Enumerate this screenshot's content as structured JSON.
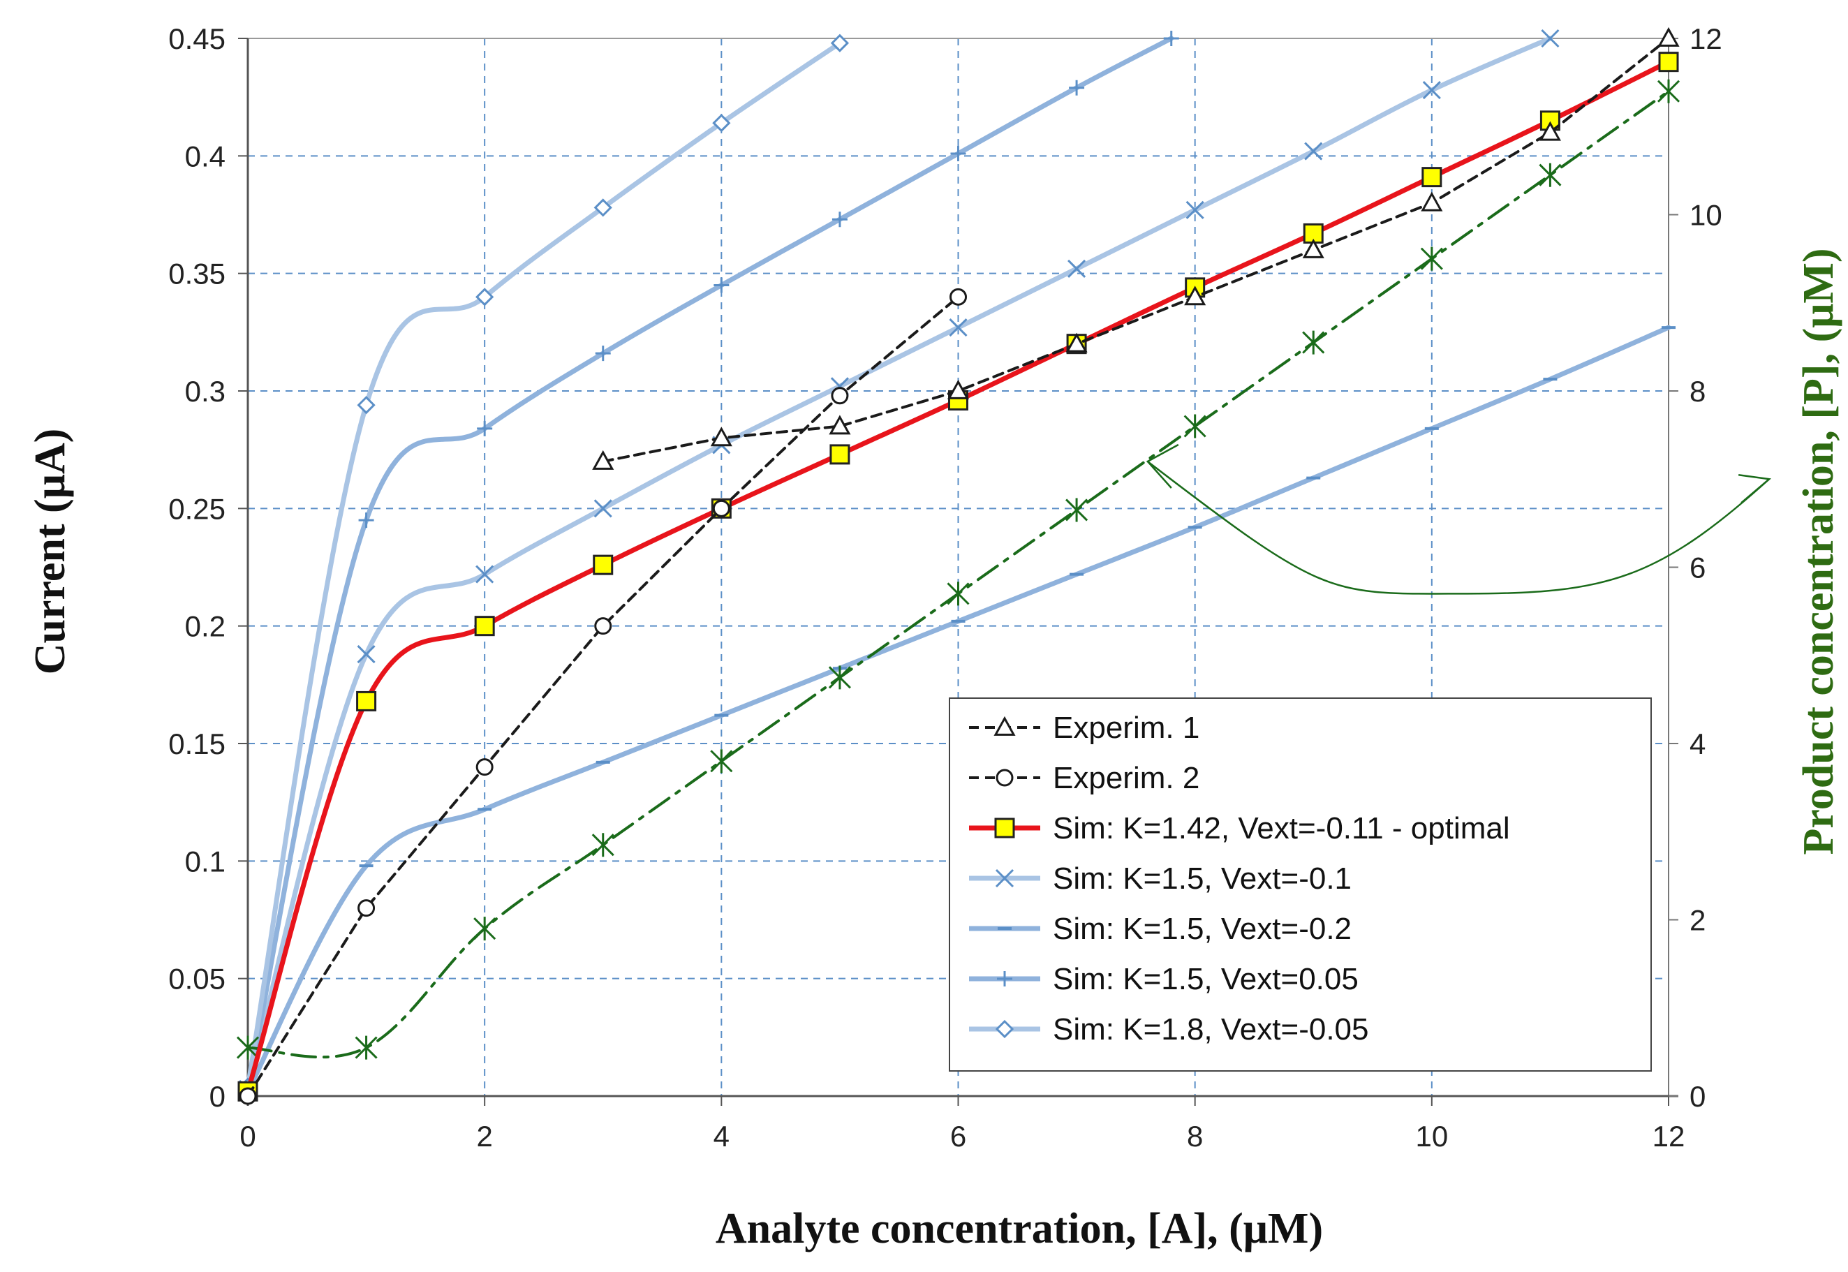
{
  "chart_data": {
    "type": "line",
    "title": "",
    "xlabel": "Analyte concentration, [A], (μM)",
    "ylabel": "Current (μA)",
    "y2label": "Product concentration, [P], (μM)",
    "xlim": [
      0,
      12
    ],
    "ylim": [
      0,
      0.45
    ],
    "y2lim": [
      0,
      12
    ],
    "x_ticks": [
      "0",
      "2",
      "4",
      "6",
      "8",
      "10",
      "12"
    ],
    "y_ticks": [
      "0",
      "0.05",
      "0.1",
      "0.15",
      "0.2",
      "0.25",
      "0.3",
      "0.35",
      "0.4",
      "0.45"
    ],
    "y2_ticks": [
      "0",
      "2",
      "4",
      "6",
      "8",
      "10",
      "12"
    ],
    "grid": true,
    "legend_position": "bottom-right",
    "colors": {
      "experim": "#1a1a1a",
      "optimal_line": "#e8141b",
      "optimal_marker_fill": "#ffff00",
      "sim_light": "#a9c4e4",
      "sim_mid": "#8fb2dc",
      "product": "#1a6b1a",
      "grid": "#5b8fc7",
      "y2_axis_title": "#2e6b12"
    },
    "series": [
      {
        "name": "Experim. 1",
        "axis": "left",
        "marker": "triangle",
        "style": "dashed",
        "x": [
          3,
          4,
          5,
          6,
          7,
          8,
          9,
          10,
          11,
          12
        ],
        "y": [
          0.27,
          0.28,
          0.285,
          0.3,
          0.32,
          0.34,
          0.36,
          0.38,
          0.41,
          0.45
        ]
      },
      {
        "name": "Experim. 2",
        "axis": "left",
        "marker": "circle",
        "style": "dashed",
        "x": [
          0,
          1,
          2,
          3,
          4,
          5,
          6
        ],
        "y": [
          0.0,
          0.08,
          0.14,
          0.2,
          0.25,
          0.298,
          0.34
        ]
      },
      {
        "name": "Sim: K=1.42, Vext=-0.11 - optimal",
        "axis": "left",
        "marker": "square",
        "style": "solid",
        "x": [
          0,
          1,
          2,
          3,
          4,
          5,
          6,
          7,
          8,
          9,
          10,
          11,
          12
        ],
        "y": [
          0.002,
          0.168,
          0.2,
          0.226,
          0.25,
          0.273,
          0.296,
          0.32,
          0.344,
          0.367,
          0.391,
          0.415,
          0.44
        ]
      },
      {
        "name": "Sim: K=1.5, Vext=-0.1",
        "axis": "left",
        "marker": "x",
        "style": "solid",
        "x": [
          0,
          1,
          2,
          3,
          4,
          5,
          6,
          7,
          8,
          9,
          10,
          11
        ],
        "y": [
          0.003,
          0.188,
          0.222,
          0.25,
          0.277,
          0.302,
          0.327,
          0.352,
          0.377,
          0.402,
          0.428,
          0.45
        ]
      },
      {
        "name": "Sim: K=1.5, Vext=-0.2",
        "axis": "left",
        "marker": "dash",
        "style": "solid",
        "x": [
          0,
          1,
          2,
          3,
          4,
          5,
          6,
          7,
          8,
          9,
          10,
          11,
          12
        ],
        "y": [
          0.002,
          0.098,
          0.122,
          0.142,
          0.162,
          0.182,
          0.202,
          0.222,
          0.242,
          0.263,
          0.284,
          0.305,
          0.327
        ]
      },
      {
        "name": "Sim: K=1.5, Vext=0.05",
        "axis": "left",
        "marker": "plus",
        "style": "solid",
        "x": [
          0,
          1,
          2,
          3,
          4,
          5,
          6,
          7,
          7.8
        ],
        "y": [
          0.003,
          0.245,
          0.284,
          0.316,
          0.345,
          0.373,
          0.401,
          0.429,
          0.45
        ]
      },
      {
        "name": "Sim: K=1.8, Vext=-0.05",
        "axis": "left",
        "marker": "diamond",
        "style": "solid",
        "x": [
          0,
          1,
          2,
          3,
          4,
          5
        ],
        "y": [
          0.004,
          0.294,
          0.34,
          0.378,
          0.414,
          0.448
        ]
      },
      {
        "name": "",
        "axis": "right",
        "marker": "star",
        "style": "dashdot",
        "x": [
          0,
          1,
          2,
          3,
          4,
          5,
          6,
          7,
          8,
          9,
          10,
          11,
          12
        ],
        "y": [
          0.55,
          0.55,
          1.9,
          2.85,
          3.8,
          4.75,
          5.7,
          6.65,
          7.6,
          8.55,
          9.5,
          10.45,
          11.4
        ]
      }
    ],
    "annotation": {
      "type": "double-arrow",
      "from": [
        7.6,
        7.2
      ],
      "to": [
        12.85,
        7.0
      ],
      "via": [
        10.3,
        5.7
      ]
    }
  }
}
